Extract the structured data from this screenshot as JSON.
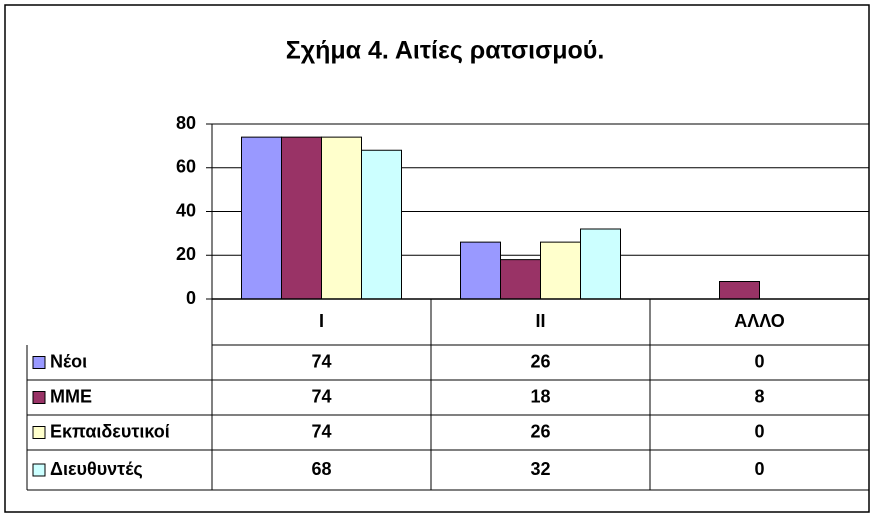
{
  "chart_data": {
    "type": "bar",
    "title": "Σχήμα 4. Αιτίες ρατσισμού.",
    "categories": [
      "I",
      "II",
      "ΑΛΛΟ"
    ],
    "series": [
      {
        "name": "Νέοι",
        "color": "#9999ff",
        "values": [
          74,
          26,
          0
        ]
      },
      {
        "name": "ΜΜΕ",
        "color": "#993366",
        "values": [
          74,
          18,
          8
        ]
      },
      {
        "name": "Εκπαιδευτικοί",
        "color": "#ffffcc",
        "values": [
          74,
          26,
          0
        ]
      },
      {
        "name": "Διευθυντές",
        "color": "#ccffff",
        "values": [
          68,
          32,
          0
        ]
      }
    ],
    "ylim": [
      0,
      80
    ],
    "yticks": [
      0,
      20,
      40,
      60,
      80
    ],
    "grid": true,
    "data_table": true
  }
}
